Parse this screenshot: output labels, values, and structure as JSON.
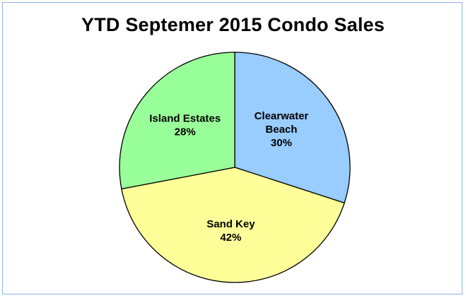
{
  "chart_data": {
    "type": "pie",
    "title": "YTD Septemer 2015 Condo Sales",
    "slices": [
      {
        "name_lines": [
          "Clearwater",
          "Beach"
        ],
        "value": 30,
        "label": "30%",
        "color": "#99ccff"
      },
      {
        "name_lines": [
          "Sand Key"
        ],
        "value": 42,
        "label": "42%",
        "color": "#ffff99"
      },
      {
        "name_lines": [
          "Island Estates"
        ],
        "value": 28,
        "label": "28%",
        "color": "#99ff99"
      }
    ],
    "start_angle": "12 o'clock",
    "direction": "clockwise",
    "data_labels": "inside",
    "legend": "none",
    "slice_border_color": "#000000"
  }
}
